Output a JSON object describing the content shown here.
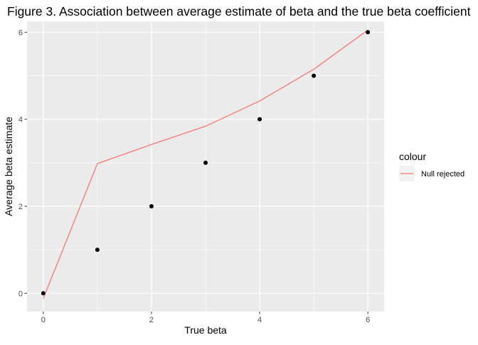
{
  "chart_data": {
    "type": "scatter",
    "title": "Figure 3. Association between average estimate of beta and the true beta coefficient",
    "xlabel": "True beta",
    "ylabel": "Average beta estimate",
    "xlim": [
      -0.3,
      6.3
    ],
    "ylim": [
      -0.42,
      6.25
    ],
    "x_ticks": [
      0,
      2,
      4,
      6
    ],
    "y_ticks": [
      0,
      2,
      4,
      6
    ],
    "grid": true,
    "legend": {
      "title": "colour",
      "position": "right",
      "entries": [
        "Null rejected"
      ]
    },
    "series": [
      {
        "type": "scatter",
        "color": "#000000",
        "points": [
          {
            "x": 0,
            "y": 0.0
          },
          {
            "x": 1,
            "y": 1.0
          },
          {
            "x": 2,
            "y": 2.0
          },
          {
            "x": 3,
            "y": 3.0
          },
          {
            "x": 4,
            "y": 4.0
          },
          {
            "x": 5,
            "y": 5.0
          },
          {
            "x": 6,
            "y": 6.0
          }
        ]
      },
      {
        "type": "line",
        "name": "Null rejected",
        "color": "#F8766D",
        "points": [
          {
            "x": 0,
            "y": -0.12
          },
          {
            "x": 1,
            "y": 2.98
          },
          {
            "x": 2,
            "y": 3.42
          },
          {
            "x": 3,
            "y": 3.84
          },
          {
            "x": 4,
            "y": 4.42
          },
          {
            "x": 5,
            "y": 5.15
          },
          {
            "x": 6,
            "y": 6.05
          }
        ]
      }
    ]
  }
}
